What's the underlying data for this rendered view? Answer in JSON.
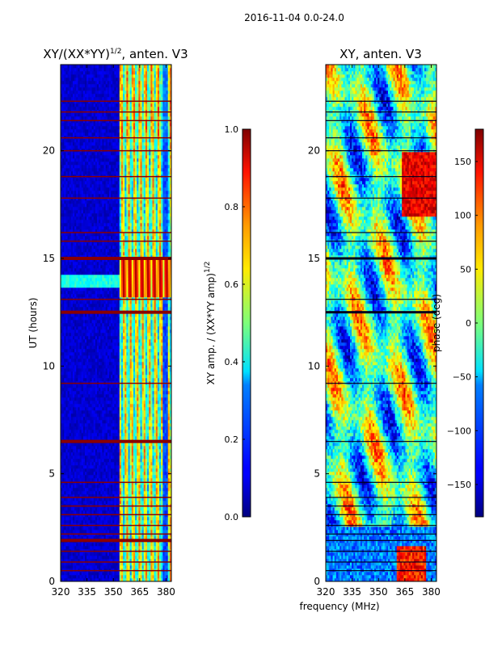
{
  "chart_data": [
    {
      "type": "heatmap",
      "suptitle": "2016-11-04 0.0-24.0",
      "title_prefix": "XY/(XX*YY)",
      "title_exp": "1/2",
      "title_suffix": ", anten. V3",
      "ylabel": "UT (hours)",
      "x_ticks": [
        320,
        335,
        350,
        365,
        380
      ],
      "xlim": [
        320,
        383
      ],
      "y_ticks": [
        0,
        5,
        10,
        15,
        20
      ],
      "ylim": [
        0,
        24
      ],
      "colormap": "jet",
      "colorbar": {
        "label_prefix": "XY amp. / (XX*YY amp)",
        "label_exp": "1/2",
        "ticks": [
          "0.0",
          "0.2",
          "0.4",
          "0.6",
          "0.8",
          "1.0"
        ],
        "range": [
          0,
          1
        ]
      },
      "flagged_bands_ut": [
        0.5,
        0.9,
        1.4,
        1.9,
        2.2,
        2.6,
        3.1,
        3.5,
        3.9,
        4.6,
        6.5,
        9.2,
        12.5,
        13.1,
        15.0,
        15.8,
        16.2,
        17.8,
        18.8,
        20.0,
        20.6,
        21.4,
        21.8,
        22.3
      ],
      "notes": "Low amplitude (blue) below 353 MHz; bright striped structure 353-383 MHz"
    },
    {
      "type": "heatmap",
      "title": "XY, anten. V3",
      "xlabel": "frequency (MHz)",
      "x_ticks": [
        320,
        335,
        350,
        365,
        380
      ],
      "xlim": [
        320,
        383
      ],
      "y_ticks": [
        0,
        5,
        10,
        15,
        20
      ],
      "ylim": [
        0,
        24
      ],
      "colormap": "jet",
      "colorbar": {
        "label": "phase (deg)",
        "ticks": [
          "150",
          "100",
          "50",
          "0",
          "−50",
          "−100",
          "−150"
        ],
        "tick_values": [
          150,
          100,
          50,
          0,
          -50,
          -100,
          -150
        ],
        "range": [
          -180,
          180
        ]
      }
    }
  ]
}
